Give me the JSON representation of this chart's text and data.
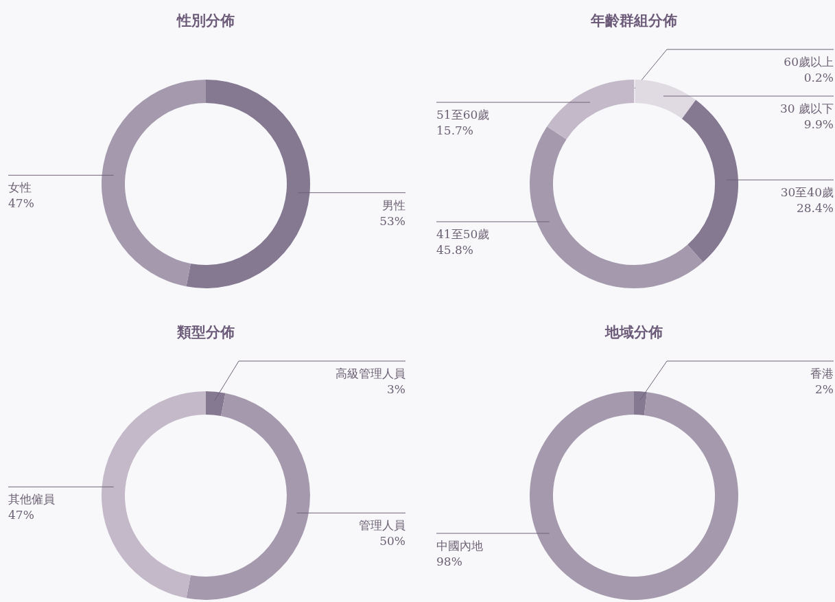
{
  "chart_data": [
    {
      "type": "donut",
      "title": "性別分佈",
      "categories": [
        "男性",
        "女性"
      ],
      "values": [
        53,
        47
      ],
      "colors": [
        "#857891",
        "#a599ad"
      ],
      "value_labels": [
        "53%",
        "47%"
      ],
      "legend": false
    },
    {
      "type": "donut",
      "title": "年齡群組分佈",
      "categories": [
        "60歲以上",
        "30 歲以下",
        "30至40歲",
        "41至50歲",
        "51至60歲"
      ],
      "values": [
        0.2,
        9.9,
        28.4,
        45.8,
        15.7
      ],
      "colors": [
        "#ece8ee",
        "#e0dae3",
        "#857891",
        "#a599ad",
        "#c4b9c9"
      ],
      "value_labels": [
        "0.2%",
        "9.9%",
        "28.4%",
        "45.8%",
        "15.7%"
      ],
      "legend": false
    },
    {
      "type": "donut",
      "title": "類型分佈",
      "categories": [
        "高級管理人員",
        "管理人員",
        "其他僱員"
      ],
      "values": [
        3,
        50,
        47
      ],
      "colors": [
        "#857891",
        "#a599ad",
        "#c4b9c9"
      ],
      "value_labels": [
        "3%",
        "50%",
        "47%"
      ],
      "legend": false
    },
    {
      "type": "donut",
      "title": "地域分佈",
      "categories": [
        "香港",
        "中國內地"
      ],
      "values": [
        2,
        98
      ],
      "colors": [
        "#857891",
        "#a599ad"
      ],
      "value_labels": [
        "2%",
        "98%"
      ],
      "legend": false
    }
  ]
}
